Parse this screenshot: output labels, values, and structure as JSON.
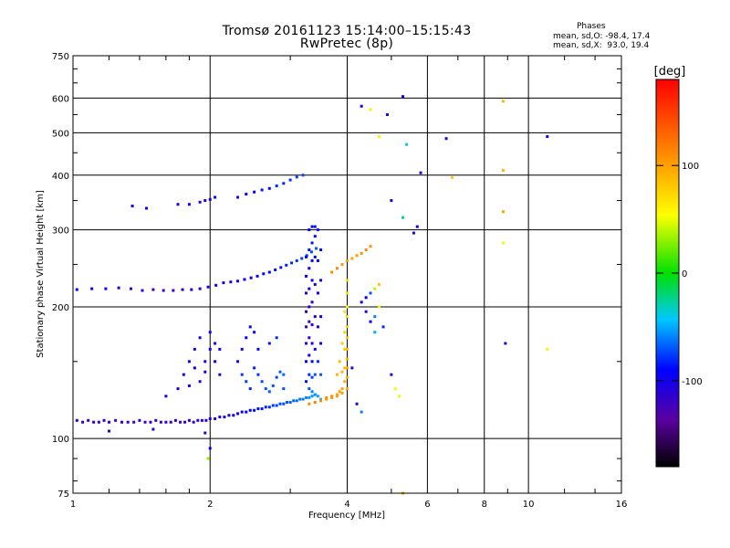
{
  "header": {
    "title_line1": "Tromsø 20161123 15:14:00–15:15:43",
    "title_line2": "RwPretec (8p)"
  },
  "stats": {
    "heading": "Phases",
    "line_o": "mean, sd,O: -98.4, 17.4",
    "line_x": "mean, sd,X:  93.0, 19.4"
  },
  "colorbar": {
    "label": "[deg]",
    "min": -180,
    "max": 180,
    "ticks": [
      {
        "value": 100,
        "label": "100"
      },
      {
        "value": 0,
        "label": "0"
      },
      {
        "value": -100,
        "label": "-100"
      }
    ]
  },
  "chart_data": {
    "type": "scatter",
    "xlabel": "Frequency [MHz]",
    "ylabel": "Stationary phase Virtual Height [km]",
    "xscale": "log",
    "yscale": "log",
    "xlim": [
      1,
      16
    ],
    "ylim": [
      75,
      750
    ],
    "grid": true,
    "xticks": [
      {
        "value": 1,
        "label": "1"
      },
      {
        "value": 2,
        "label": "2"
      },
      {
        "value": 4,
        "label": "4"
      },
      {
        "value": 6,
        "label": "6"
      },
      {
        "value": 8,
        "label": "8"
      },
      {
        "value": 10,
        "label": "10"
      },
      {
        "value": 16,
        "label": "16"
      }
    ],
    "yticks": [
      {
        "value": 75,
        "label": "75"
      },
      {
        "value": 100,
        "label": "100"
      },
      {
        "value": 200,
        "label": "200"
      },
      {
        "value": 300,
        "label": "300"
      },
      {
        "value": 400,
        "label": "400"
      },
      {
        "value": 500,
        "label": "500"
      },
      {
        "value": 600,
        "label": "600"
      },
      {
        "value": 750,
        "label": "750"
      }
    ],
    "minor_xticks": [
      1.2,
      1.4,
      1.6,
      1.8,
      3,
      5,
      7,
      9,
      12,
      14
    ],
    "minor_yticks": [
      80,
      90,
      150,
      250,
      350,
      450,
      550,
      650,
      700
    ],
    "series": [
      {
        "x": [
          1.02,
          1.05,
          1.08,
          1.11,
          1.14,
          1.17,
          1.2,
          1.24,
          1.28,
          1.32,
          1.36,
          1.4,
          1.44,
          1.48,
          1.52,
          1.56,
          1.6,
          1.64,
          1.68,
          1.72,
          1.76,
          1.8,
          1.84,
          1.88,
          1.92,
          1.96,
          2.0,
          2.05,
          2.1,
          2.15,
          2.2,
          2.25,
          2.3,
          2.35,
          2.4,
          2.45,
          2.5,
          2.55,
          2.6,
          2.65,
          2.7,
          2.75,
          2.8,
          2.85,
          2.9,
          2.95,
          3.0,
          3.05,
          3.1,
          3.15,
          3.2,
          3.25,
          3.3,
          3.35,
          3.4
        ],
        "y": [
          110,
          109,
          110,
          109,
          109,
          110,
          109,
          110,
          109,
          109,
          109,
          110,
          109,
          109,
          110,
          109,
          109,
          109,
          110,
          109,
          109,
          110,
          109,
          110,
          110,
          110,
          111,
          111,
          112,
          112,
          113,
          113,
          114,
          115,
          115,
          116,
          116,
          117,
          117,
          118,
          118,
          119,
          119,
          120,
          120,
          121,
          121,
          122,
          122,
          123,
          123,
          124,
          124,
          125,
          126
        ],
        "phase": [
          -115,
          -112,
          -118,
          -110,
          -120,
          -114,
          -116,
          -119,
          -113,
          -117,
          -121,
          -111,
          -118,
          -114,
          -116,
          -120,
          -115,
          -117,
          -112,
          -119,
          -116,
          -113,
          -118,
          -114,
          -110,
          -112,
          -108,
          -106,
          -104,
          -102,
          -100,
          -98,
          -96,
          -94,
          -92,
          -90,
          -88,
          -86,
          -84,
          -82,
          -80,
          -78,
          -76,
          -74,
          -72,
          -70,
          -68,
          -66,
          -64,
          -62,
          -60,
          -58,
          -56,
          -54,
          -52
        ]
      },
      {
        "x": [
          1.02,
          1.1,
          1.18,
          1.26,
          1.34,
          1.42,
          1.5,
          1.58,
          1.66,
          1.74,
          1.82,
          1.9,
          1.98,
          2.06,
          2.14,
          2.22,
          2.3,
          2.38,
          2.46,
          2.54,
          2.62,
          2.7,
          2.78,
          2.86,
          2.94,
          3.02,
          3.1,
          3.18,
          3.26,
          3.34,
          3.42
        ],
        "y": [
          219,
          220,
          220,
          221,
          220,
          218,
          219,
          218,
          218,
          219,
          219,
          220,
          222,
          224,
          227,
          228,
          229,
          231,
          233,
          235,
          238,
          240,
          243,
          246,
          249,
          252,
          255,
          258,
          262,
          267,
          272
        ],
        "phase": [
          -95,
          -100,
          -105,
          -110,
          -115,
          -118,
          -120,
          -122,
          -118,
          -115,
          -112,
          -110,
          -108,
          -105,
          -102,
          -100,
          -98,
          -96,
          -94,
          -92,
          -90,
          -88,
          -86,
          -84,
          -82,
          -80,
          -78,
          -76,
          -74,
          -72,
          -70
        ]
      },
      {
        "x": [
          1.35,
          1.45,
          1.7,
          1.8,
          1.9,
          1.95,
          2.0,
          2.05,
          2.3,
          2.4,
          2.5,
          2.6,
          2.7,
          2.8,
          2.9,
          3.0,
          3.1,
          3.2
        ],
        "y": [
          340,
          336,
          343,
          343,
          347,
          350,
          352,
          356,
          356,
          362,
          366,
          370,
          373,
          378,
          383,
          390,
          396,
          400
        ],
        "phase": [
          -100,
          -95,
          -110,
          -105,
          -108,
          -112,
          -100,
          -95,
          -102,
          -98,
          -90,
          -85,
          -88,
          -80,
          -82,
          -78,
          -75,
          -72
        ]
      },
      {
        "x": [
          3.25,
          3.25,
          3.25,
          3.25,
          3.25,
          3.25,
          3.25,
          3.25,
          3.3,
          3.3,
          3.3,
          3.3,
          3.3,
          3.3,
          3.3,
          3.3,
          3.3,
          3.3,
          3.35,
          3.35,
          3.35,
          3.35,
          3.35,
          3.35,
          3.35,
          3.35,
          3.35,
          3.35,
          3.4,
          3.4,
          3.4,
          3.4,
          3.4,
          3.4,
          3.4,
          3.4,
          3.45,
          3.45,
          3.45,
          3.45,
          3.45,
          3.45,
          3.5,
          3.5,
          3.5,
          3.5,
          3.5,
          3.5
        ],
        "y": [
          135,
          150,
          165,
          180,
          195,
          215,
          235,
          260,
          130,
          140,
          155,
          170,
          185,
          200,
          220,
          245,
          270,
          300,
          128,
          138,
          150,
          165,
          182,
          205,
          230,
          255,
          280,
          305,
          126,
          140,
          160,
          190,
          225,
          260,
          290,
          305,
          125,
          150,
          180,
          215,
          255,
          300,
          123,
          140,
          165,
          190,
          230,
          270
        ],
        "phase": [
          -85,
          -95,
          -110,
          -120,
          -115,
          -105,
          -95,
          -88,
          -70,
          -80,
          -100,
          -115,
          -120,
          -112,
          -100,
          -92,
          -85,
          -90,
          -60,
          -75,
          -90,
          -105,
          -118,
          -110,
          -98,
          -90,
          -85,
          -95,
          -55,
          -70,
          -95,
          -112,
          -100,
          -92,
          -88,
          -85,
          -50,
          -80,
          -105,
          -98,
          -90,
          -85,
          -45,
          -70,
          -90,
          -100,
          -95,
          -88
        ]
      },
      {
        "x": [
          3.3,
          3.4,
          3.5,
          3.6,
          3.7,
          3.8,
          3.9,
          4.0,
          4.0,
          4.0,
          4.0,
          4.0,
          4.0,
          4.0,
          4.0,
          3.95,
          3.95,
          3.95,
          3.95,
          3.95,
          3.9,
          3.9,
          3.9,
          3.85,
          3.85,
          3.8,
          3.8,
          3.7,
          3.6,
          3.7,
          3.8,
          3.9,
          4.0,
          4.1,
          4.2,
          4.3,
          4.4,
          4.5,
          4.0,
          4.0,
          4.0
        ],
        "y": [
          120,
          121,
          122,
          123,
          124,
          125,
          127,
          130,
          138,
          145,
          152,
          160,
          170,
          180,
          190,
          135,
          145,
          160,
          175,
          195,
          130,
          142,
          165,
          128,
          150,
          126,
          140,
          125,
          124,
          240,
          245,
          250,
          255,
          258,
          262,
          265,
          270,
          275,
          200,
          215,
          230
        ],
        "phase": [
          110,
          115,
          112,
          108,
          105,
          100,
          98,
          95,
          92,
          90,
          88,
          85,
          80,
          75,
          70,
          95,
          88,
          82,
          78,
          72,
          98,
          90,
          80,
          100,
          85,
          102,
          88,
          105,
          108,
          110,
          112,
          105,
          100,
          98,
          102,
          108,
          110,
          106,
          60,
          65,
          70
        ]
      },
      {
        "x": [
          1.6,
          1.7,
          1.75,
          1.8,
          1.85,
          1.9,
          1.95,
          1.9,
          1.95,
          2.0,
          2.0,
          2.05,
          2.05,
          2.1,
          2.1,
          1.85,
          1.8,
          2.3,
          2.35,
          2.4,
          2.45,
          2.5,
          2.55,
          2.35,
          2.4,
          2.45,
          2.5,
          2.55,
          2.6,
          2.65,
          2.7,
          2.75,
          2.8,
          2.85,
          2.9,
          2.7,
          2.8,
          2.9
        ],
        "y": [
          125,
          130,
          140,
          150,
          160,
          170,
          150,
          135,
          142,
          160,
          175,
          150,
          165,
          140,
          160,
          145,
          132,
          150,
          160,
          170,
          180,
          175,
          160,
          140,
          135,
          130,
          145,
          140,
          135,
          130,
          128,
          132,
          138,
          142,
          140,
          165,
          170,
          130
        ],
        "phase": [
          -110,
          -105,
          -100,
          -95,
          -98,
          -102,
          -108,
          -112,
          -100,
          -95,
          -90,
          -100,
          -105,
          -110,
          -98,
          -90,
          -95,
          -105,
          -100,
          -95,
          -92,
          -90,
          -88,
          -78,
          -75,
          -80,
          -82,
          -78,
          -72,
          -70,
          -68,
          -70,
          -72,
          -68,
          -65,
          -85,
          -80,
          -70
        ]
      },
      {
        "x": [
          4.3,
          4.4,
          4.5,
          4.6,
          4.7,
          4.5,
          4.6,
          4.7,
          4.8,
          4.4,
          4.6
        ],
        "y": [
          205,
          210,
          215,
          220,
          225,
          185,
          190,
          200,
          180,
          195,
          175
        ],
        "phase": [
          -100,
          -90,
          -70,
          40,
          80,
          -95,
          -60,
          60,
          -80,
          -110,
          -50
        ]
      },
      {
        "x": [
          4.3,
          4.5,
          4.7,
          5.0,
          5.3,
          5.6,
          5.8,
          6.6,
          6.8,
          8.8,
          8.8,
          8.8,
          8.8,
          8.9,
          11.0,
          11.0,
          5.3,
          5.4,
          5.7,
          4.9,
          5.0,
          5.1
        ],
        "y": [
          575,
          565,
          490,
          350,
          320,
          295,
          405,
          485,
          395,
          590,
          410,
          330,
          280,
          165,
          490,
          160,
          605,
          470,
          305,
          550,
          140,
          130
        ],
        "phase": [
          -110,
          60,
          60,
          -100,
          -30,
          -110,
          -110,
          -110,
          80,
          90,
          90,
          100,
          50,
          -110,
          -110,
          60,
          -100,
          -40,
          -90,
          -110,
          -120,
          60
        ]
      },
      {
        "x": [
          1.2,
          1.5,
          1.95,
          1.98,
          2.0,
          4.1,
          4.2,
          4.3,
          5.2,
          5.3
        ],
        "y": [
          104,
          105,
          103,
          90,
          95,
          145,
          120,
          115,
          125,
          75
        ],
        "phase": [
          -110,
          -110,
          -110,
          30,
          -90,
          -110,
          -110,
          -60,
          50,
          100
        ]
      }
    ]
  }
}
